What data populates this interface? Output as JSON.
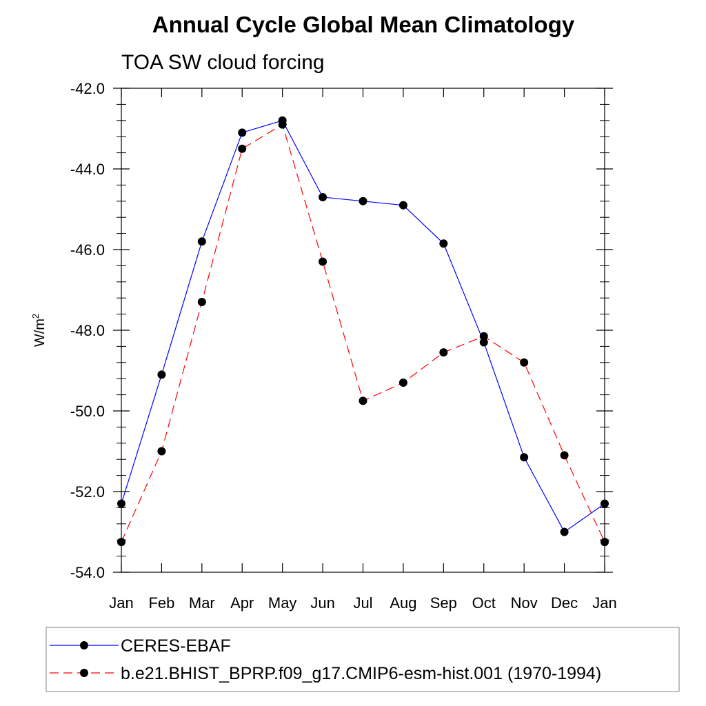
{
  "chart_data": {
    "type": "line",
    "title": "Annual Cycle Global Mean Climatology",
    "subtitle": "TOA SW cloud forcing",
    "ylabel": "W/m",
    "ylabel_sup": "2",
    "xlabel": "",
    "categories": [
      "Jan",
      "Feb",
      "Mar",
      "Apr",
      "May",
      "Jun",
      "Jul",
      "Aug",
      "Sep",
      "Oct",
      "Nov",
      "Dec",
      "Jan"
    ],
    "ylim": [
      -54.0,
      -42.0
    ],
    "yticks": [
      "-42.0",
      "-44.0",
      "-46.0",
      "-48.0",
      "-50.0",
      "-52.0",
      "-54.0"
    ],
    "ytick_values": [
      -42,
      -44,
      -46,
      -48,
      -50,
      -52,
      -54
    ],
    "series": [
      {
        "name": "CERES-EBAF",
        "color": "#0000ff",
        "dash": "solid",
        "values": [
          -52.3,
          -49.1,
          -45.8,
          -43.1,
          -42.8,
          -44.7,
          -44.8,
          -44.9,
          -45.85,
          -48.3,
          -51.15,
          -53.0,
          -52.3
        ]
      },
      {
        "name": "b.e21.BHIST_BPRP.f09_g17.CMIP6-esm-hist.001 (1970-1994)",
        "color": "#ff0000",
        "dash": "dashed",
        "values": [
          -53.25,
          -51.0,
          -47.3,
          -43.5,
          -42.9,
          -46.3,
          -49.75,
          -49.3,
          -48.55,
          -48.15,
          -48.8,
          -51.1,
          -53.25
        ]
      }
    ],
    "grid": false,
    "legend_position": "bottom"
  }
}
